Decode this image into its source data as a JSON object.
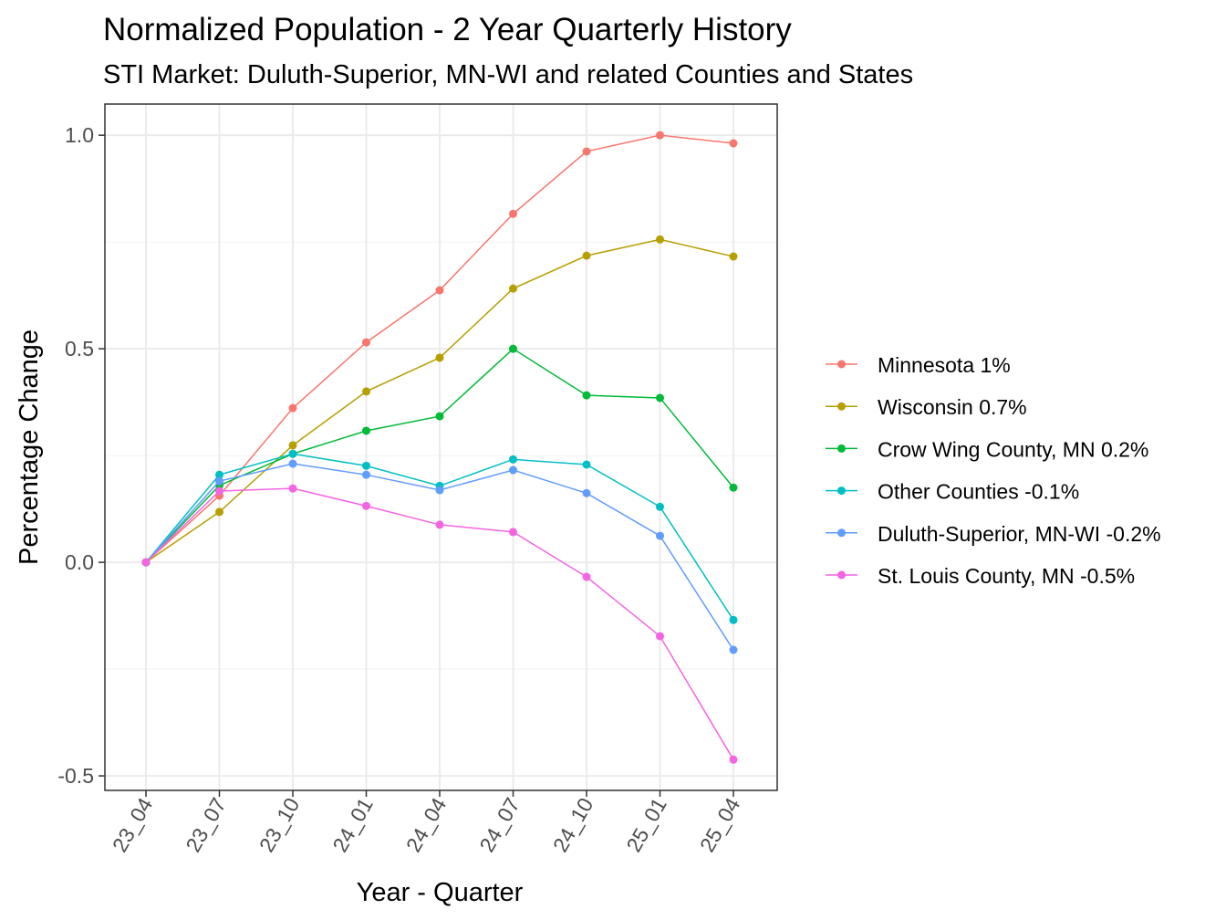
{
  "chart_data": {
    "type": "line",
    "title": "Normalized Population - 2 Year Quarterly History",
    "subtitle": "STI Market: Duluth-Superior, MN-WI and related Counties and States",
    "xlabel": "Year - Quarter",
    "ylabel": "Percentage Change",
    "categories": [
      "23_04",
      "23_07",
      "23_10",
      "24_01",
      "24_04",
      "24_07",
      "24_10",
      "25_01",
      "25_04"
    ],
    "ylim": [
      -0.534,
      1.073
    ],
    "yticks": [
      -0.5,
      0.0,
      0.5,
      1.0
    ],
    "ytick_labels": [
      "-0.5",
      "0.0",
      "0.5",
      "1.0"
    ],
    "minor_yticks": [
      -0.25,
      0.25,
      0.75
    ],
    "grid": true,
    "legend_position": "right",
    "series": [
      {
        "name": "Minnesota 1%",
        "color": "#F8766D",
        "values": [
          0,
          0.156,
          0.361,
          0.515,
          0.637,
          0.816,
          0.962,
          1.0,
          0.981
        ]
      },
      {
        "name": "Wisconsin 0.7%",
        "color": "#B79F00",
        "values": [
          0,
          0.118,
          0.274,
          0.4,
          0.479,
          0.641,
          0.718,
          0.756,
          0.716
        ]
      },
      {
        "name": "Crow Wing County, MN 0.2%",
        "color": "#00BA38",
        "values": [
          0,
          0.18,
          0.254,
          0.308,
          0.342,
          0.5,
          0.391,
          0.385,
          0.175
        ]
      },
      {
        "name": "Other Counties -0.1%",
        "color": "#00BFC4",
        "values": [
          0,
          0.205,
          0.254,
          0.226,
          0.179,
          0.241,
          0.229,
          0.13,
          -0.135
        ]
      },
      {
        "name": "Duluth-Superior, MN-WI -0.2%",
        "color": "#619CFF",
        "values": [
          0,
          0.19,
          0.231,
          0.205,
          0.169,
          0.216,
          0.162,
          0.062,
          -0.205
        ]
      },
      {
        "name": "St. Louis County, MN -0.5%",
        "color": "#F564E3",
        "values": [
          0,
          0.167,
          0.173,
          0.132,
          0.088,
          0.071,
          -0.034,
          -0.173,
          -0.462
        ]
      }
    ]
  }
}
